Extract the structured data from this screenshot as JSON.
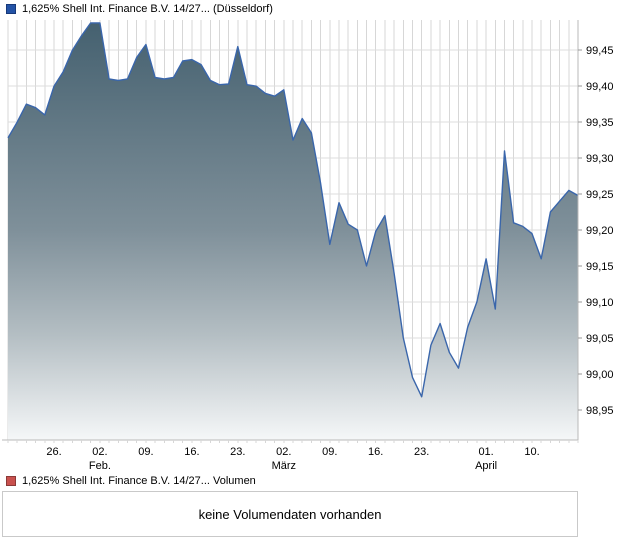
{
  "header": {
    "title": "1,625% Shell Int. Finance B.V. 14/27... (Düsseldorf)",
    "swatch_color": "#2453a6",
    "swatch_border": "#17397a"
  },
  "chart_data": {
    "type": "area",
    "title": "1,625% Shell Int. Finance B.V. 14/27... (Düsseldorf)",
    "xlabel": "",
    "ylabel": "",
    "grid": "both",
    "legend_position": "top-left",
    "y_axis_side": "right",
    "ylim": [
      98.908,
      99.492
    ],
    "y_ticks": [
      98.95,
      99.0,
      99.05,
      99.1,
      99.15,
      99.2,
      99.25,
      99.3,
      99.35,
      99.4,
      99.45
    ],
    "y_tick_labels": [
      "98,95",
      "99,00",
      "99,05",
      "99,10",
      "99,15",
      "99,20",
      "99,25",
      "99,30",
      "99,35",
      "99,40",
      "99,45"
    ],
    "x_ticks": [
      {
        "day": 5,
        "line1": "26.",
        "line2": ""
      },
      {
        "day": 10,
        "line1": "02.",
        "line2": "Feb."
      },
      {
        "day": 15,
        "line1": "09.",
        "line2": ""
      },
      {
        "day": 20,
        "line1": "16.",
        "line2": ""
      },
      {
        "day": 25,
        "line1": "23.",
        "line2": ""
      },
      {
        "day": 30,
        "line1": "02.",
        "line2": "März"
      },
      {
        "day": 35,
        "line1": "09.",
        "line2": ""
      },
      {
        "day": 40,
        "line1": "16.",
        "line2": ""
      },
      {
        "day": 45,
        "line1": "23.",
        "line2": ""
      },
      {
        "day": 52,
        "line1": "01.",
        "line2": "April"
      },
      {
        "day": 57,
        "line1": "10.",
        "line2": ""
      }
    ],
    "values": [
      99.328,
      99.35,
      99.375,
      99.37,
      99.36,
      99.4,
      99.42,
      99.45,
      99.47,
      99.488,
      99.488,
      99.41,
      99.408,
      99.41,
      99.44,
      99.458,
      99.412,
      99.41,
      99.412,
      99.435,
      99.437,
      99.43,
      99.408,
      99.402,
      99.403,
      99.455,
      99.402,
      99.4,
      99.39,
      99.386,
      99.395,
      99.325,
      99.355,
      99.335,
      99.265,
      99.18,
      99.238,
      99.208,
      99.2,
      99.15,
      99.198,
      99.22,
      99.14,
      99.05,
      98.995,
      98.968,
      99.04,
      99.07,
      99.03,
      99.008,
      99.065,
      99.1,
      99.16,
      99.09,
      99.31,
      99.21,
      99.205,
      99.195,
      99.16,
      99.225,
      99.24,
      99.255,
      99.248
    ],
    "line_color": "#3a66ab",
    "fill_gradient": [
      "#44606f",
      "#7f909a",
      "#b4bec3",
      "#f5f7f8"
    ],
    "grid_color_vertical": "#d7d7d7",
    "grid_color_horizontal": "#dedede",
    "axis_color": "#b9b9b9"
  },
  "volume_section": {
    "legend_label": "1,625% Shell Int. Finance B.V. 14/27... Volumen",
    "swatch_color": "#c9514e",
    "swatch_border": "#8b3a38",
    "message": "keine Volumendaten vorhanden"
  }
}
